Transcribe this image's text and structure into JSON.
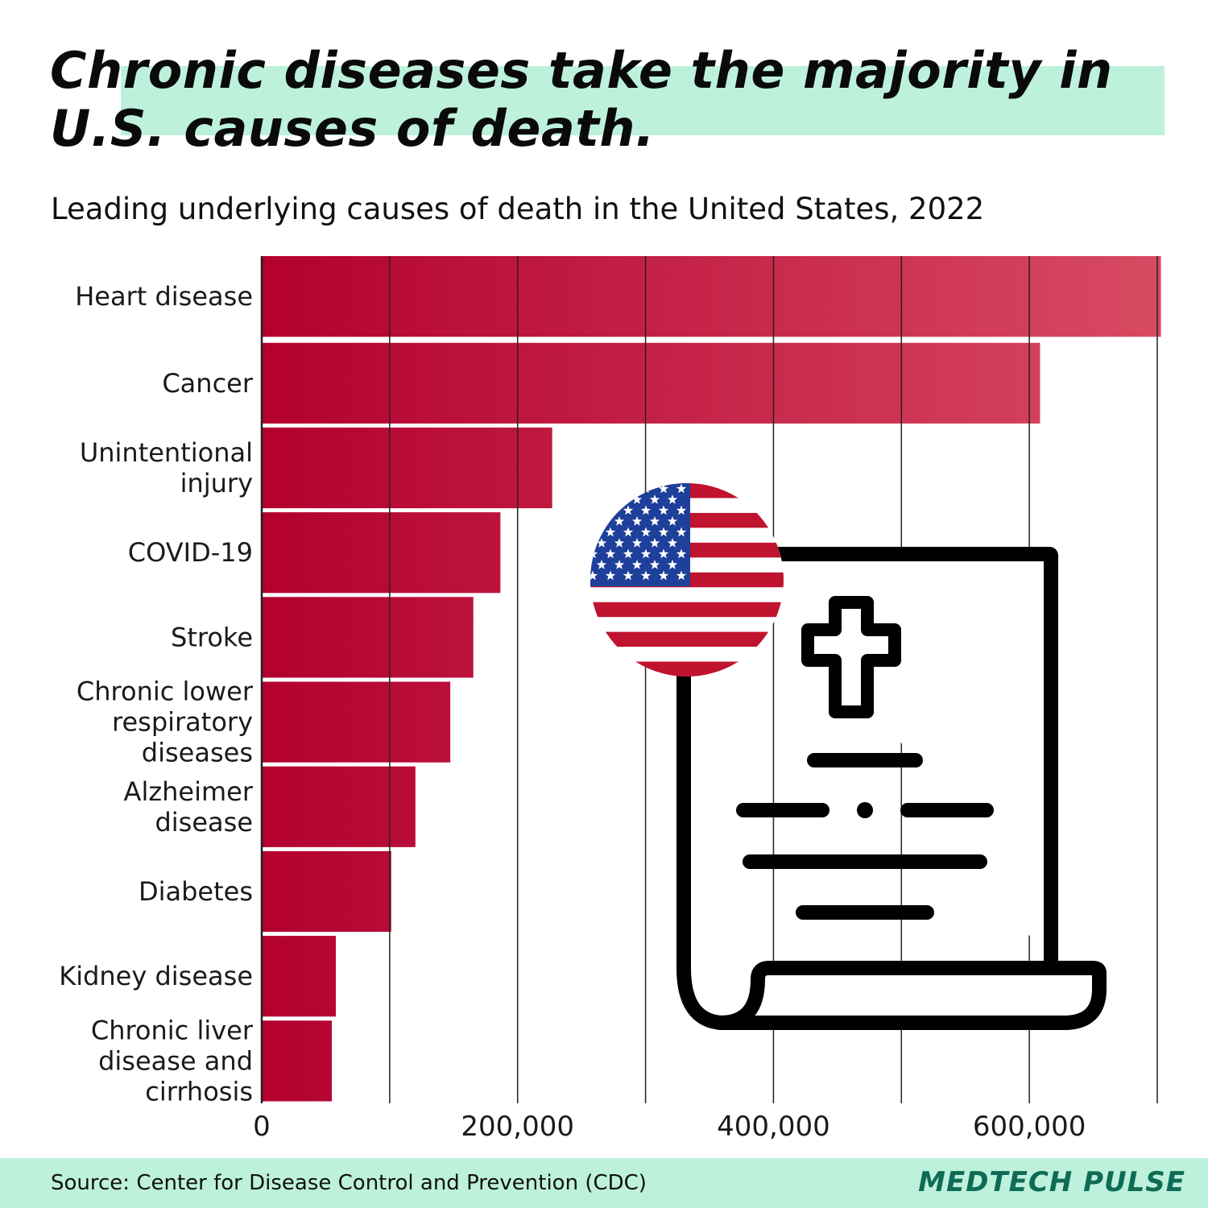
{
  "title": "Chronic diseases take the majority in U.S. causes of death.",
  "subtitle": "Leading underlying causes of death in the United States, 2022",
  "source": "Source: Center for Disease Control and Prevention (CDC)",
  "brand": "MEDTECH PULSE",
  "colors": {
    "bar_dark": "#b3002f",
    "bar_light": "#d84a62",
    "highlight": "#bdf1db",
    "brand": "#0f6b56"
  },
  "icons": [
    "us-flag-icon",
    "death-certificate-icon"
  ],
  "chart_data": {
    "type": "bar",
    "orientation": "horizontal",
    "categories": [
      [
        "Heart disease"
      ],
      [
        "Cancer"
      ],
      [
        "Unintentional",
        "injury"
      ],
      [
        "COVID-19"
      ],
      [
        "Stroke"
      ],
      [
        "Chronic lower",
        "respiratory",
        "diseases"
      ],
      [
        "Alzheimer",
        "disease"
      ],
      [
        "Diabetes"
      ],
      [
        "Kidney disease"
      ],
      [
        "Chronic liver",
        "disease and",
        "cirrhosis"
      ]
    ],
    "values": [
      702880,
      608371,
      227039,
      186552,
      165393,
      147382,
      120122,
      101209,
      57937,
      54803
    ],
    "xlim": [
      0,
      700000
    ],
    "xticks": [
      0,
      200000,
      400000,
      600000
    ],
    "xtick_labels": [
      "0",
      "200,000",
      "400,000",
      "600,000"
    ],
    "gridlines": [
      0,
      100000,
      200000,
      300000,
      400000,
      500000,
      600000,
      700000
    ],
    "grid": true
  }
}
